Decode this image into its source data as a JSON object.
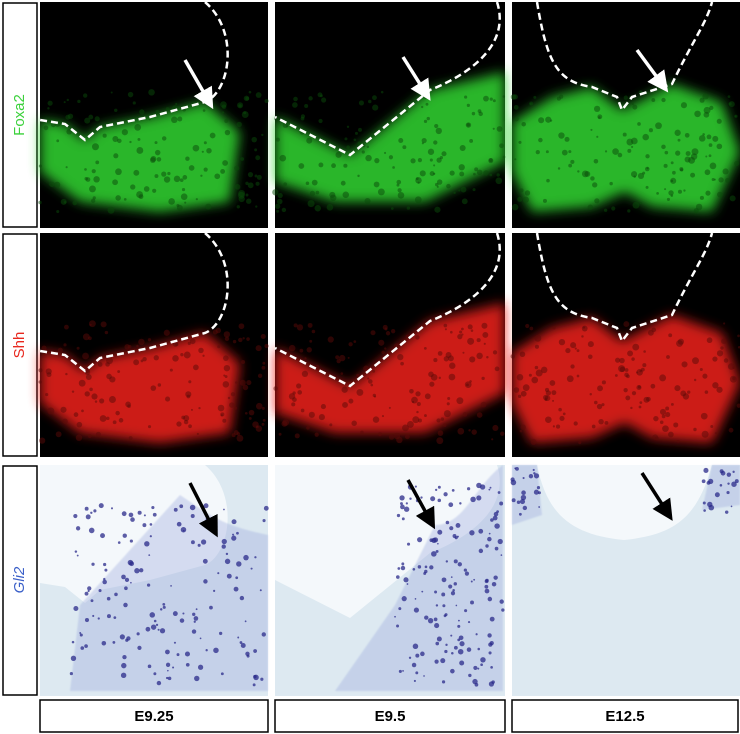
{
  "row_labels": [
    "Foxa2",
    "Shh",
    "Gli2"
  ],
  "column_labels": [
    "E9.25",
    "E9.5",
    "E12.5"
  ]
}
